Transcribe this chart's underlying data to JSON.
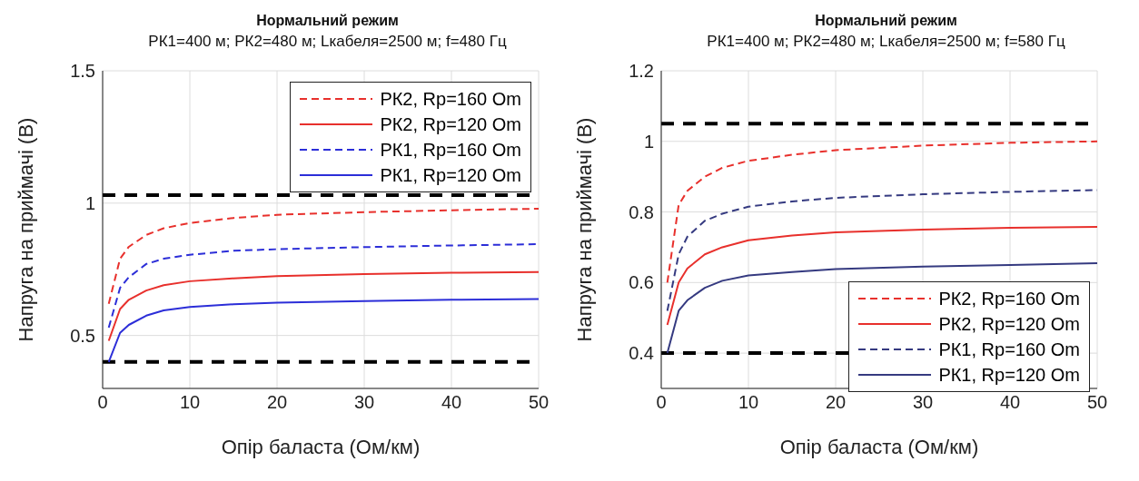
{
  "chart_data": [
    {
      "type": "line",
      "title": "Нормальний режим",
      "subtitle": "РК1=400 м; РК2=480 м; Lкабеля=2500 м; f=480 Гц",
      "xlabel": "Опір баласта (Ом/км)",
      "ylabel": "Напруга на приймачі (В)",
      "x": [
        0.7,
        2,
        3,
        5,
        7,
        10,
        15,
        20,
        30,
        40,
        50
      ],
      "xlim": [
        0,
        50
      ],
      "xticks": [
        0,
        10,
        20,
        30,
        40,
        50
      ],
      "ylim": [
        0.3,
        1.5
      ],
      "yticks": [
        0.5,
        1,
        1.5
      ],
      "grid": true,
      "legend": "top right",
      "ref_lines": [
        {
          "axis": "y",
          "value": 1.03,
          "color": "#000000",
          "line_style": "dashed"
        },
        {
          "axis": "y",
          "value": 0.4,
          "color": "#000000",
          "line_style": "dashed"
        }
      ],
      "series": [
        {
          "name": "РК2, Rp=160 Om",
          "color": "#e8302c",
          "line_style": "dashed",
          "values": [
            0.62,
            0.79,
            0.835,
            0.88,
            0.905,
            0.925,
            0.944,
            0.956,
            0.966,
            0.973,
            0.979
          ]
        },
        {
          "name": "РК2, Rp=120 Om",
          "color": "#e8302c",
          "line_style": "solid",
          "values": [
            0.48,
            0.6,
            0.635,
            0.67,
            0.69,
            0.705,
            0.716,
            0.724,
            0.732,
            0.737,
            0.74
          ]
        },
        {
          "name": "РК1, Rp=160 Om",
          "color": "#2c2ed8",
          "line_style": "dashed",
          "values": [
            0.53,
            0.68,
            0.72,
            0.77,
            0.79,
            0.805,
            0.82,
            0.826,
            0.834,
            0.84,
            0.845
          ]
        },
        {
          "name": "РК1, Rp=120 Om",
          "color": "#2c2ed8",
          "line_style": "solid",
          "values": [
            0.4,
            0.51,
            0.54,
            0.575,
            0.595,
            0.608,
            0.618,
            0.624,
            0.63,
            0.635,
            0.638
          ]
        }
      ]
    },
    {
      "type": "line",
      "title": "Нормальний режим",
      "subtitle": "РК1=400 м; РК2=480 м; Lкабеля=2500 м; f=580 Гц",
      "xlabel": "Опір баласта (Ом/км)",
      "ylabel": "Напруга на приймачі (В)",
      "x": [
        0.7,
        2,
        3,
        5,
        7,
        10,
        15,
        20,
        30,
        40,
        50
      ],
      "xlim": [
        0,
        50
      ],
      "xticks": [
        0,
        10,
        20,
        30,
        40,
        50
      ],
      "ylim": [
        0.3,
        1.2
      ],
      "yticks": [
        0.4,
        0.6,
        0.8,
        1,
        1.2
      ],
      "grid": true,
      "legend": "bottom right",
      "ref_lines": [
        {
          "axis": "y",
          "value": 1.05,
          "color": "#000000",
          "line_style": "dashed"
        },
        {
          "axis": "y",
          "value": 0.4,
          "color": "#000000",
          "line_style": "dashed"
        }
      ],
      "series": [
        {
          "name": "РК2, Rp=160 Om",
          "color": "#e8302c",
          "line_style": "dashed",
          "values": [
            0.6,
            0.82,
            0.86,
            0.9,
            0.925,
            0.945,
            0.962,
            0.975,
            0.988,
            0.996,
            1.0
          ]
        },
        {
          "name": "РК2, Rp=120 Om",
          "color": "#e8302c",
          "line_style": "solid",
          "values": [
            0.48,
            0.6,
            0.64,
            0.68,
            0.7,
            0.72,
            0.733,
            0.742,
            0.75,
            0.755,
            0.758
          ]
        },
        {
          "name": "РК1, Rp=160 Om",
          "color": "#353a80",
          "line_style": "dashed",
          "values": [
            0.52,
            0.68,
            0.73,
            0.775,
            0.795,
            0.815,
            0.83,
            0.84,
            0.85,
            0.857,
            0.862
          ]
        },
        {
          "name": "РК1, Rp=120 Om",
          "color": "#353a80",
          "line_style": "solid",
          "values": [
            0.4,
            0.52,
            0.55,
            0.585,
            0.605,
            0.62,
            0.63,
            0.638,
            0.645,
            0.65,
            0.655
          ]
        }
      ]
    }
  ]
}
